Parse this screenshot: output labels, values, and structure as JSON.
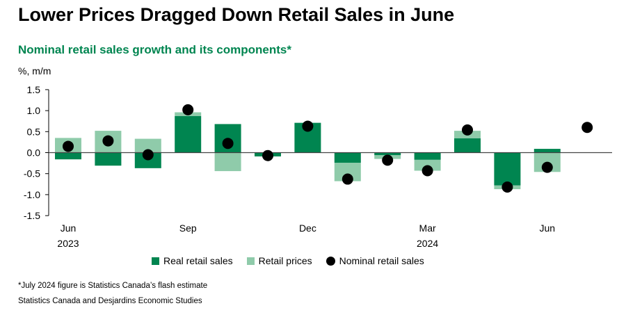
{
  "title": "Lower Prices Dragged Down Retail Sales in June",
  "subtitle": "Nominal retail sales growth and its components*",
  "footnote": "*July 2024 figure is Statistics Canada’s flash estimate",
  "source": "Statistics Canada and Desjardins Economic Studies",
  "colors": {
    "real": "#008550",
    "prices": "#8fcbaa",
    "nominal": "#000000"
  },
  "chart_data": {
    "type": "bar",
    "ylabel": "%, m/m",
    "ylim": [
      -1.5,
      1.5
    ],
    "yticks": [
      "1.5",
      "1.0",
      "0.5",
      "0.0",
      "-0.5",
      "-1.0",
      "-1.5"
    ],
    "categories": [
      "2023-06",
      "2023-07",
      "2023-08",
      "2023-09",
      "2023-10",
      "2023-11",
      "2023-12",
      "2024-01",
      "2024-02",
      "2024-03",
      "2024-04",
      "2024-05",
      "2024-06",
      "2024-07"
    ],
    "xtick_labels": [
      {
        "index": 0,
        "label": "Jun",
        "year": "2023"
      },
      {
        "index": 3,
        "label": "Sep"
      },
      {
        "index": 6,
        "label": "Dec"
      },
      {
        "index": 9,
        "label": "Mar",
        "year": "2024"
      },
      {
        "index": 12,
        "label": "Jun"
      }
    ],
    "series": [
      {
        "name": "Real retail sales",
        "kind": "stacked-bar",
        "values": [
          -0.16,
          -0.31,
          -0.37,
          0.87,
          0.68,
          -0.09,
          0.71,
          -0.24,
          -0.06,
          -0.17,
          0.34,
          -0.78,
          0.09,
          null
        ]
      },
      {
        "name": "Retail prices",
        "kind": "stacked-bar",
        "values": [
          0.35,
          0.52,
          0.33,
          0.09,
          -0.44,
          0.0,
          0.0,
          -0.44,
          -0.09,
          -0.26,
          0.18,
          -0.09,
          -0.46,
          null
        ]
      },
      {
        "name": "Nominal retail sales",
        "kind": "dot",
        "values": [
          0.15,
          0.28,
          -0.05,
          1.02,
          0.22,
          -0.07,
          0.63,
          -0.63,
          -0.18,
          -0.43,
          0.54,
          -0.82,
          -0.35,
          0.6
        ]
      }
    ],
    "legend": "bottom"
  }
}
